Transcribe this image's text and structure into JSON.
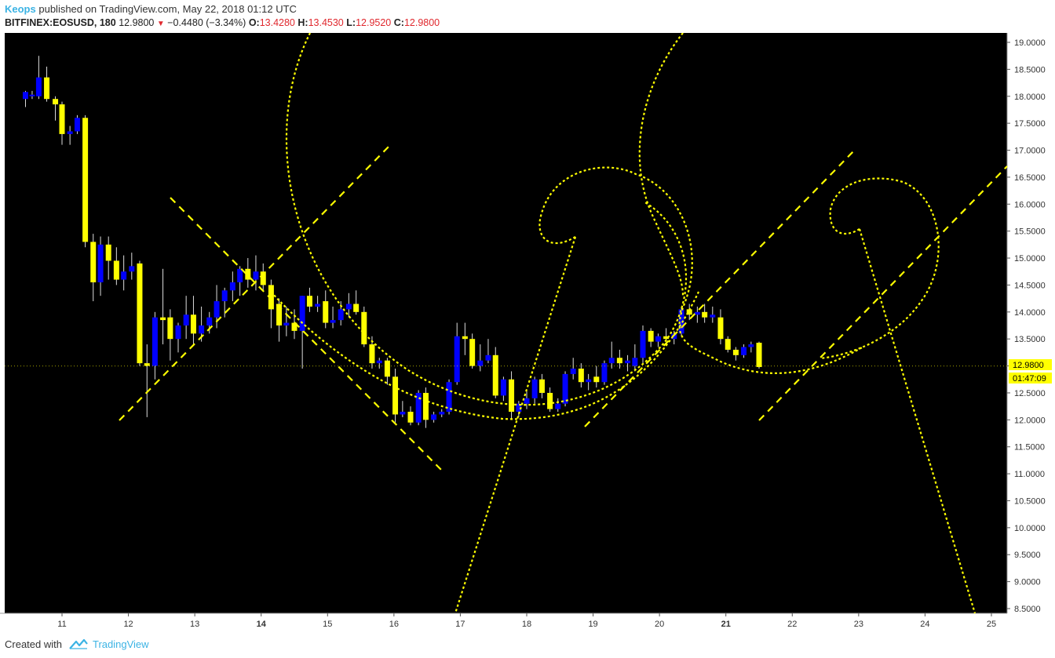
{
  "header": {
    "publisher": "Keops",
    "published_text": "published on TradingView.com, May 22, 2018 01:12 UTC",
    "symbol": "BITFINEX:EOSUSD, 180",
    "last": "12.9800",
    "change": "−0.4480 (−3.34%)",
    "o_label": "O:",
    "o_value": "13.4280",
    "h_label": "H:",
    "h_value": "13.4530",
    "l_label": "L:",
    "l_value": "12.9520",
    "c_label": "C:",
    "c_value": "12.9800"
  },
  "footer": {
    "created_with": "Created with",
    "brand": "TradingView"
  },
  "colors": {
    "background": "#000000",
    "bull": "#0000ff",
    "bear": "#ffff00",
    "drawing": "#ffff00",
    "price_label_bg": "#ffff00",
    "axis_bg": "#ffffff"
  },
  "chart_data": {
    "type": "candlestick",
    "symbol": "EOSUSD",
    "exchange": "BITFINEX",
    "interval": "180",
    "ylim": [
      8.4,
      19.2
    ],
    "y_ticks": [
      "19.0000",
      "18.5000",
      "18.0000",
      "17.5000",
      "17.0000",
      "16.5000",
      "16.0000",
      "15.5000",
      "15.0000",
      "14.5000",
      "14.0000",
      "13.5000",
      "13.0000",
      "12.5000",
      "12.0000",
      "11.5000",
      "11.0000",
      "10.5000",
      "10.0000",
      "9.5000",
      "9.0000",
      "8.5000"
    ],
    "x_ticks": [
      {
        "label": "11",
        "bold": false
      },
      {
        "label": "12",
        "bold": false
      },
      {
        "label": "13",
        "bold": false
      },
      {
        "label": "14",
        "bold": true
      },
      {
        "label": "15",
        "bold": false
      },
      {
        "label": "16",
        "bold": false
      },
      {
        "label": "17",
        "bold": false
      },
      {
        "label": "18",
        "bold": false
      },
      {
        "label": "19",
        "bold": false
      },
      {
        "label": "20",
        "bold": false
      },
      {
        "label": "21",
        "bold": true
      },
      {
        "label": "22",
        "bold": false
      },
      {
        "label": "23",
        "bold": false
      },
      {
        "label": "24",
        "bold": false
      },
      {
        "label": "25",
        "bold": false
      }
    ],
    "x_range_days": [
      10.15,
      25.35
    ],
    "last_price_label": "12.9800",
    "countdown_label": "01:47:09",
    "candles": [
      {
        "t": 10.45,
        "o": 17.95,
        "h": 18.1,
        "l": 17.8,
        "c": 18.08
      },
      {
        "t": 10.55,
        "o": 18.0,
        "h": 18.1,
        "l": 17.95,
        "c": 18.03
      },
      {
        "t": 10.65,
        "o": 18.0,
        "h": 18.75,
        "l": 17.95,
        "c": 18.35
      },
      {
        "t": 10.77,
        "o": 18.35,
        "h": 18.55,
        "l": 17.9,
        "c": 17.95
      },
      {
        "t": 10.9,
        "o": 17.95,
        "h": 18.0,
        "l": 17.55,
        "c": 17.85
      },
      {
        "t": 11.0,
        "o": 17.85,
        "h": 17.9,
        "l": 17.1,
        "c": 17.3
      },
      {
        "t": 11.12,
        "o": 17.3,
        "h": 17.45,
        "l": 17.1,
        "c": 17.35
      },
      {
        "t": 11.23,
        "o": 17.35,
        "h": 17.65,
        "l": 17.3,
        "c": 17.6
      },
      {
        "t": 11.35,
        "o": 17.6,
        "h": 17.65,
        "l": 15.2,
        "c": 15.3
      },
      {
        "t": 11.47,
        "o": 15.3,
        "h": 15.45,
        "l": 14.2,
        "c": 14.55
      },
      {
        "t": 11.58,
        "o": 14.55,
        "h": 15.4,
        "l": 14.3,
        "c": 15.25
      },
      {
        "t": 11.7,
        "o": 15.25,
        "h": 15.4,
        "l": 14.6,
        "c": 14.95
      },
      {
        "t": 11.82,
        "o": 14.95,
        "h": 15.2,
        "l": 14.5,
        "c": 14.6
      },
      {
        "t": 11.93,
        "o": 14.6,
        "h": 15.05,
        "l": 14.4,
        "c": 14.75
      },
      {
        "t": 12.05,
        "o": 14.75,
        "h": 15.1,
        "l": 14.6,
        "c": 14.85
      },
      {
        "t": 12.17,
        "o": 14.9,
        "h": 14.95,
        "l": 13.0,
        "c": 13.05
      },
      {
        "t": 12.28,
        "o": 13.05,
        "h": 13.4,
        "l": 12.05,
        "c": 13.0
      },
      {
        "t": 12.4,
        "o": 13.0,
        "h": 14.0,
        "l": 12.75,
        "c": 13.9
      },
      {
        "t": 12.52,
        "o": 13.9,
        "h": 14.8,
        "l": 13.4,
        "c": 13.85
      },
      {
        "t": 12.63,
        "o": 13.9,
        "h": 14.05,
        "l": 13.1,
        "c": 13.5
      },
      {
        "t": 12.75,
        "o": 13.5,
        "h": 13.8,
        "l": 13.25,
        "c": 13.75
      },
      {
        "t": 12.87,
        "o": 13.75,
        "h": 14.3,
        "l": 13.5,
        "c": 13.95
      },
      {
        "t": 12.98,
        "o": 13.95,
        "h": 14.3,
        "l": 13.4,
        "c": 13.6
      },
      {
        "t": 13.1,
        "o": 13.6,
        "h": 14.1,
        "l": 13.45,
        "c": 13.75
      },
      {
        "t": 13.22,
        "o": 13.75,
        "h": 14.0,
        "l": 13.6,
        "c": 13.9
      },
      {
        "t": 13.33,
        "o": 13.9,
        "h": 14.5,
        "l": 13.7,
        "c": 14.2
      },
      {
        "t": 13.45,
        "o": 14.2,
        "h": 14.45,
        "l": 13.9,
        "c": 14.4
      },
      {
        "t": 13.57,
        "o": 14.4,
        "h": 14.75,
        "l": 14.2,
        "c": 14.55
      },
      {
        "t": 13.68,
        "o": 14.55,
        "h": 14.85,
        "l": 14.3,
        "c": 14.8
      },
      {
        "t": 13.8,
        "o": 14.8,
        "h": 15.0,
        "l": 14.45,
        "c": 14.6
      },
      {
        "t": 13.92,
        "o": 14.6,
        "h": 15.05,
        "l": 14.4,
        "c": 14.75
      },
      {
        "t": 14.03,
        "o": 14.75,
        "h": 14.9,
        "l": 14.4,
        "c": 14.5
      },
      {
        "t": 14.15,
        "o": 14.5,
        "h": 14.6,
        "l": 13.7,
        "c": 14.05
      },
      {
        "t": 14.27,
        "o": 14.15,
        "h": 14.25,
        "l": 13.45,
        "c": 13.75
      },
      {
        "t": 14.38,
        "o": 13.75,
        "h": 14.1,
        "l": 13.55,
        "c": 13.8
      },
      {
        "t": 14.5,
        "o": 13.8,
        "h": 14.05,
        "l": 13.5,
        "c": 13.65
      },
      {
        "t": 14.62,
        "o": 13.65,
        "h": 14.3,
        "l": 12.95,
        "c": 14.3
      },
      {
        "t": 14.73,
        "o": 14.3,
        "h": 14.45,
        "l": 14.0,
        "c": 14.1
      },
      {
        "t": 14.85,
        "o": 14.1,
        "h": 14.3,
        "l": 14.0,
        "c": 14.15
      },
      {
        "t": 14.97,
        "o": 14.2,
        "h": 14.4,
        "l": 13.7,
        "c": 13.8
      },
      {
        "t": 15.08,
        "o": 13.8,
        "h": 14.1,
        "l": 13.7,
        "c": 13.85
      },
      {
        "t": 15.2,
        "o": 13.85,
        "h": 14.2,
        "l": 13.75,
        "c": 14.05
      },
      {
        "t": 15.32,
        "o": 14.05,
        "h": 14.35,
        "l": 13.9,
        "c": 14.15
      },
      {
        "t": 15.43,
        "o": 14.15,
        "h": 14.4,
        "l": 13.95,
        "c": 14.0
      },
      {
        "t": 15.55,
        "o": 14.0,
        "h": 14.1,
        "l": 13.35,
        "c": 13.4
      },
      {
        "t": 15.67,
        "o": 13.4,
        "h": 13.55,
        "l": 12.95,
        "c": 13.05
      },
      {
        "t": 15.78,
        "o": 13.05,
        "h": 13.15,
        "l": 12.95,
        "c": 13.1
      },
      {
        "t": 15.9,
        "o": 13.1,
        "h": 13.15,
        "l": 12.65,
        "c": 12.8
      },
      {
        "t": 16.02,
        "o": 12.8,
        "h": 12.95,
        "l": 11.95,
        "c": 12.1
      },
      {
        "t": 16.13,
        "o": 12.1,
        "h": 12.35,
        "l": 12.05,
        "c": 12.15
      },
      {
        "t": 16.25,
        "o": 12.15,
        "h": 12.25,
        "l": 11.9,
        "c": 11.95
      },
      {
        "t": 16.37,
        "o": 11.95,
        "h": 12.55,
        "l": 11.9,
        "c": 12.5
      },
      {
        "t": 16.48,
        "o": 12.5,
        "h": 12.6,
        "l": 11.85,
        "c": 12.0
      },
      {
        "t": 16.6,
        "o": 12.0,
        "h": 12.15,
        "l": 11.95,
        "c": 12.1
      },
      {
        "t": 16.72,
        "o": 12.1,
        "h": 12.2,
        "l": 12.05,
        "c": 12.15
      },
      {
        "t": 16.83,
        "o": 12.15,
        "h": 12.75,
        "l": 12.1,
        "c": 12.7
      },
      {
        "t": 16.95,
        "o": 12.7,
        "h": 13.8,
        "l": 12.65,
        "c": 13.55
      },
      {
        "t": 17.07,
        "o": 13.55,
        "h": 13.8,
        "l": 13.2,
        "c": 13.5
      },
      {
        "t": 17.18,
        "o": 13.5,
        "h": 13.6,
        "l": 12.95,
        "c": 13.0
      },
      {
        "t": 17.3,
        "o": 13.0,
        "h": 13.4,
        "l": 12.9,
        "c": 13.1
      },
      {
        "t": 17.42,
        "o": 13.1,
        "h": 13.5,
        "l": 13.05,
        "c": 13.2
      },
      {
        "t": 17.53,
        "o": 13.2,
        "h": 13.35,
        "l": 12.4,
        "c": 12.45
      },
      {
        "t": 17.65,
        "o": 12.45,
        "h": 12.8,
        "l": 12.35,
        "c": 12.75
      },
      {
        "t": 17.77,
        "o": 12.75,
        "h": 12.9,
        "l": 12.0,
        "c": 12.15
      },
      {
        "t": 17.88,
        "o": 12.15,
        "h": 12.35,
        "l": 12.05,
        "c": 12.3
      },
      {
        "t": 18.0,
        "o": 12.3,
        "h": 12.55,
        "l": 12.2,
        "c": 12.4
      },
      {
        "t": 18.12,
        "o": 12.4,
        "h": 12.8,
        "l": 12.3,
        "c": 12.75
      },
      {
        "t": 18.23,
        "o": 12.75,
        "h": 12.85,
        "l": 12.4,
        "c": 12.5
      },
      {
        "t": 18.35,
        "o": 12.5,
        "h": 12.6,
        "l": 12.15,
        "c": 12.2
      },
      {
        "t": 18.47,
        "o": 12.2,
        "h": 12.4,
        "l": 12.15,
        "c": 12.3
      },
      {
        "t": 18.58,
        "o": 12.3,
        "h": 12.9,
        "l": 12.25,
        "c": 12.85
      },
      {
        "t": 18.7,
        "o": 12.85,
        "h": 13.15,
        "l": 12.75,
        "c": 12.95
      },
      {
        "t": 18.82,
        "o": 12.95,
        "h": 13.05,
        "l": 12.6,
        "c": 12.7
      },
      {
        "t": 18.93,
        "o": 12.7,
        "h": 12.85,
        "l": 12.55,
        "c": 12.75
      },
      {
        "t": 19.05,
        "o": 12.8,
        "h": 13.0,
        "l": 12.6,
        "c": 12.7
      },
      {
        "t": 19.17,
        "o": 12.7,
        "h": 13.1,
        "l": 12.65,
        "c": 13.05
      },
      {
        "t": 19.28,
        "o": 13.05,
        "h": 13.45,
        "l": 12.95,
        "c": 13.15
      },
      {
        "t": 19.4,
        "o": 13.15,
        "h": 13.3,
        "l": 12.95,
        "c": 13.05
      },
      {
        "t": 19.52,
        "o": 13.05,
        "h": 13.2,
        "l": 12.9,
        "c": 13.1
      },
      {
        "t": 19.63,
        "o": 13.0,
        "h": 13.4,
        "l": 12.9,
        "c": 13.15
      },
      {
        "t": 19.75,
        "o": 13.15,
        "h": 13.75,
        "l": 13.05,
        "c": 13.65
      },
      {
        "t": 19.87,
        "o": 13.65,
        "h": 13.7,
        "l": 13.35,
        "c": 13.45
      },
      {
        "t": 19.98,
        "o": 13.45,
        "h": 13.6,
        "l": 13.35,
        "c": 13.55
      },
      {
        "t": 20.1,
        "o": 13.55,
        "h": 13.7,
        "l": 13.45,
        "c": 13.5
      },
      {
        "t": 20.22,
        "o": 13.5,
        "h": 13.65,
        "l": 13.4,
        "c": 13.6
      },
      {
        "t": 20.33,
        "o": 13.6,
        "h": 14.1,
        "l": 13.55,
        "c": 14.05
      },
      {
        "t": 20.45,
        "o": 14.05,
        "h": 14.15,
        "l": 13.85,
        "c": 13.95
      },
      {
        "t": 20.57,
        "o": 13.95,
        "h": 14.1,
        "l": 13.8,
        "c": 14.0
      },
      {
        "t": 20.68,
        "o": 14.0,
        "h": 14.15,
        "l": 13.8,
        "c": 13.9
      },
      {
        "t": 20.8,
        "o": 13.9,
        "h": 14.1,
        "l": 13.8,
        "c": 13.95
      },
      {
        "t": 20.92,
        "o": 13.9,
        "h": 14.05,
        "l": 13.4,
        "c": 13.5
      },
      {
        "t": 21.03,
        "o": 13.5,
        "h": 13.55,
        "l": 13.25,
        "c": 13.3
      },
      {
        "t": 21.15,
        "o": 13.3,
        "h": 13.35,
        "l": 13.1,
        "c": 13.2
      },
      {
        "t": 21.27,
        "o": 13.2,
        "h": 13.4,
        "l": 13.15,
        "c": 13.35
      },
      {
        "t": 21.38,
        "o": 13.35,
        "h": 13.45,
        "l": 13.25,
        "c": 13.4
      },
      {
        "t": 21.5,
        "o": 13.43,
        "h": 13.45,
        "l": 12.95,
        "c": 12.98
      }
    ],
    "drawings_note": "Hand-drawn yellow dashed trend lines, Fibonacci spiral arcs and a rounding-bottom arc overlaid on price"
  }
}
